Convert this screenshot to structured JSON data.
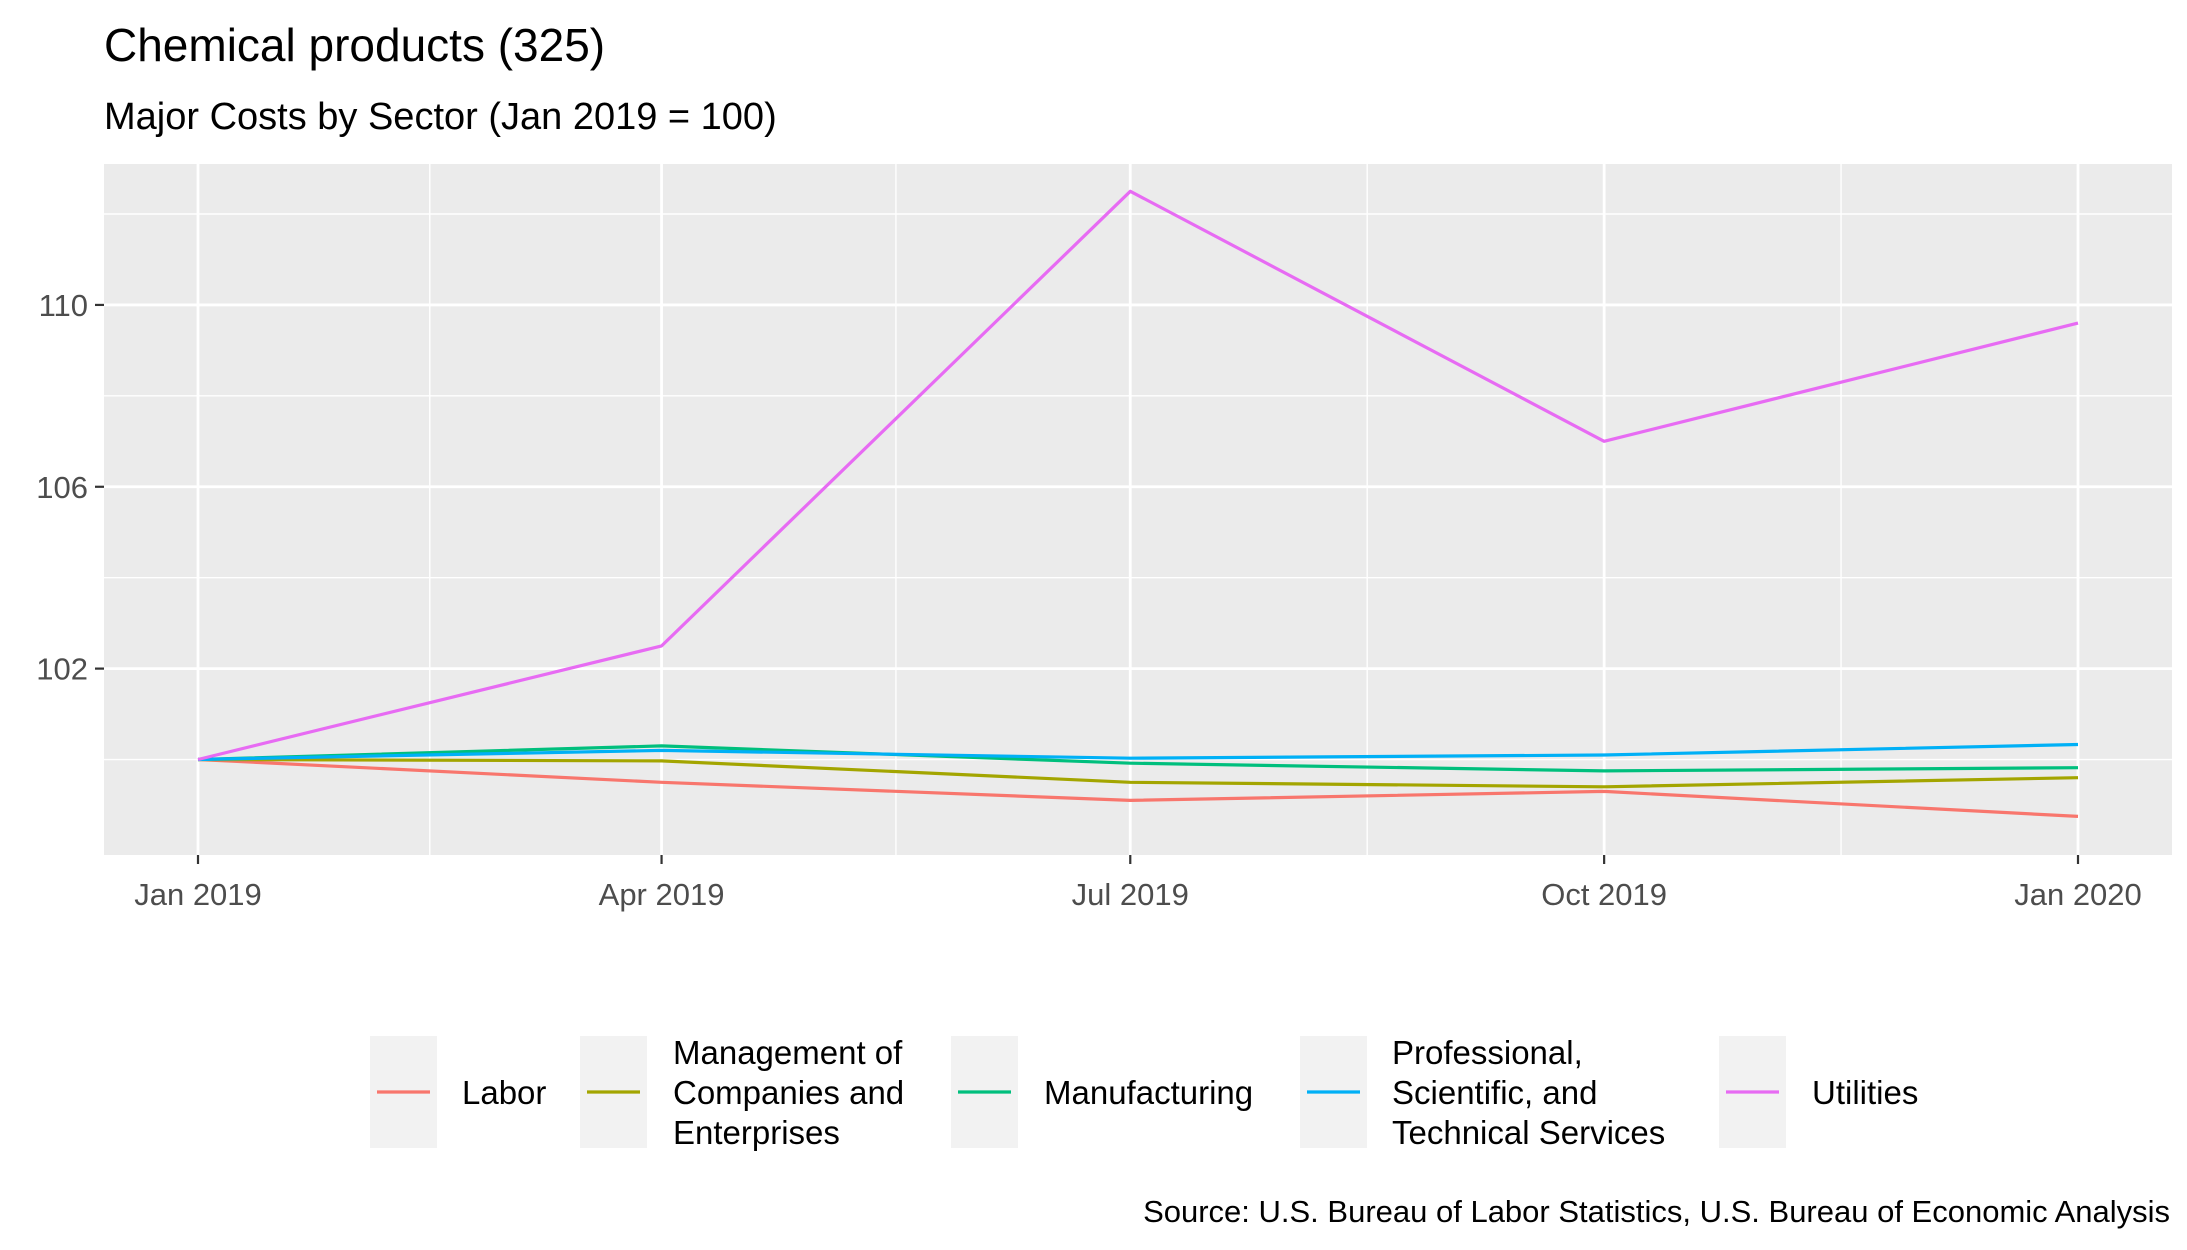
{
  "chart_data": {
    "type": "line",
    "title": "Chemical products (325)",
    "subtitle": "Major Costs by Sector (Jan 2019 = 100)",
    "caption": "Source: U.S. Bureau of Labor Statistics, U.S. Bureau of Economic Analysis",
    "xlabel": "",
    "ylabel": "",
    "x": [
      "2019-01-01",
      "2019-04-01",
      "2019-07-01",
      "2019-10-01",
      "2020-01-01"
    ],
    "x_tick_labels": [
      "Jan 2019",
      "Apr 2019",
      "Jul 2019",
      "Oct 2019",
      "Jan 2020"
    ],
    "y_ticks": [
      102,
      106,
      110
    ],
    "ylim": [
      97.9,
      113.1
    ],
    "grid": true,
    "legend_position": "bottom",
    "series": [
      {
        "name": "Labor",
        "color": "#F8766D",
        "legend_lines": [
          "Labor"
        ],
        "values": [
          100.0,
          99.5,
          99.1,
          99.3,
          98.75
        ]
      },
      {
        "name": "Management of Companies and Enterprises",
        "color": "#A3A500",
        "legend_lines": [
          "Management of",
          "Companies and",
          "Enterprises"
        ],
        "values": [
          100.0,
          99.97,
          99.5,
          99.4,
          99.6
        ]
      },
      {
        "name": "Manufacturing",
        "color": "#00BF7D",
        "legend_lines": [
          "Manufacturing"
        ],
        "values": [
          100.0,
          100.3,
          99.92,
          99.75,
          99.82
        ]
      },
      {
        "name": "Professional, Scientific, and Technical Services",
        "color": "#00B0F6",
        "legend_lines": [
          "Professional,",
          "Scientific, and",
          "Technical Services"
        ],
        "values": [
          100.0,
          100.2,
          100.03,
          100.1,
          100.33
        ]
      },
      {
        "name": "Utilities",
        "color": "#E76BF3",
        "legend_lines": [
          "Utilities"
        ],
        "values": [
          100.0,
          102.5,
          112.5,
          107.0,
          109.6
        ]
      }
    ]
  }
}
